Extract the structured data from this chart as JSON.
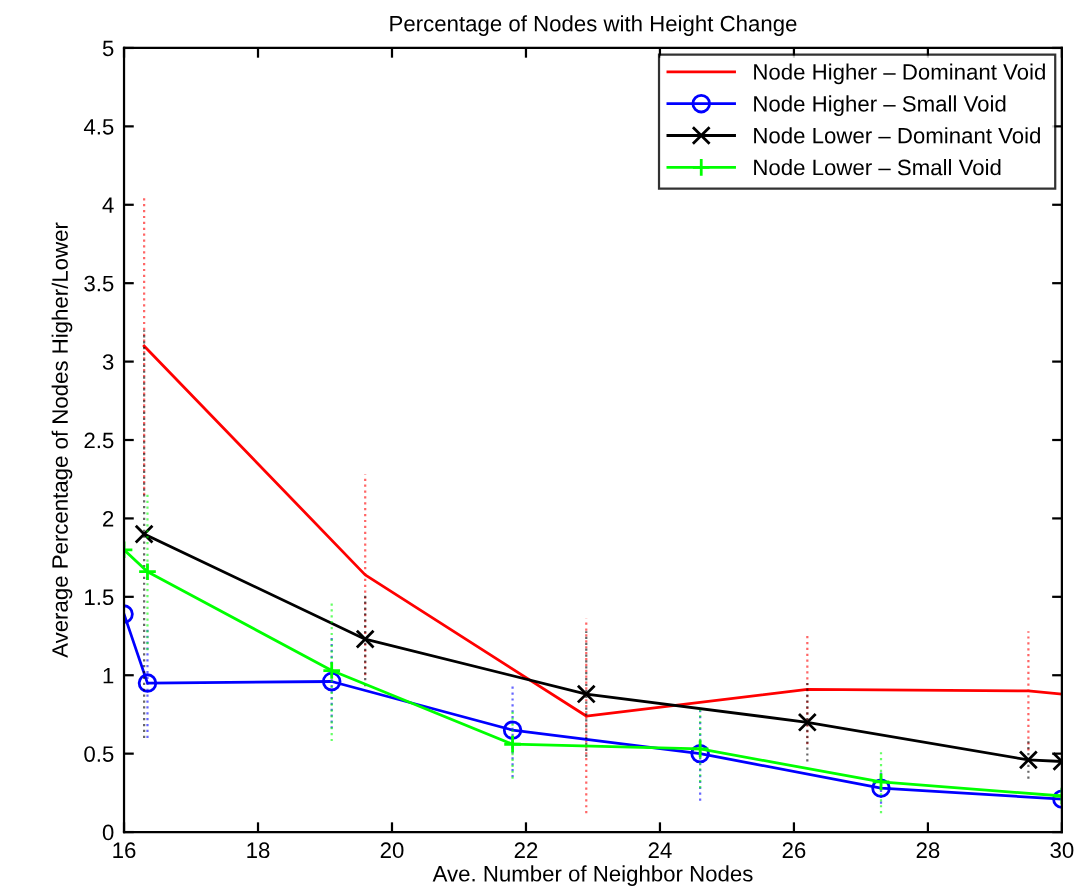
{
  "chart_data": {
    "type": "line",
    "title": "Percentage of Nodes with Height Change",
    "xlabel": "Ave. Number of Neighbor Nodes",
    "ylabel": "Average Percentage of Nodes Higher/Lower",
    "xlim": [
      16,
      30
    ],
    "ylim": [
      0,
      5
    ],
    "xticks": [
      16,
      18,
      20,
      22,
      24,
      26,
      28,
      30
    ],
    "yticks": [
      0,
      0.5,
      1,
      1.5,
      2,
      2.5,
      3,
      3.5,
      4,
      4.5,
      5
    ],
    "grid": false,
    "legend": "top right",
    "line_style": "solid",
    "series": [
      {
        "name": "Node Higher – Dominant Void",
        "color": "#ff0000",
        "marker": "none",
        "x": [
          16.3,
          19.6,
          22.9,
          26.2,
          29.5,
          30
        ],
        "values": [
          3.1,
          1.64,
          0.74,
          0.91,
          0.9,
          0.88
        ],
        "errors": [
          0.95,
          0.64,
          0.62,
          0.35,
          0.38,
          null
        ]
      },
      {
        "name": "Node Higher – Small Void",
        "color": "#0000ff",
        "marker": "circle",
        "x": [
          16,
          16.35,
          19.1,
          21.8,
          24.6,
          27.3,
          30
        ],
        "values": [
          1.39,
          0.95,
          0.96,
          0.65,
          0.5,
          0.28,
          0.21
        ],
        "errors": [
          null,
          0.35,
          0.3,
          0.3,
          0.3,
          0.1,
          null
        ]
      },
      {
        "name": "Node Lower – Dominant Void",
        "color": "#000000",
        "marker": "cross",
        "x": [
          16.3,
          19.6,
          22.9,
          26.2,
          29.5,
          30
        ],
        "values": [
          1.9,
          1.23,
          0.88,
          0.7,
          0.46,
          0.45
        ],
        "errors": [
          1.3,
          0.3,
          0.4,
          0.25,
          0.12,
          null
        ]
      },
      {
        "name": "Node Lower – Small Void",
        "color": "#00ff00",
        "marker": "plus",
        "x": [
          16,
          16.35,
          19.1,
          21.8,
          24.6,
          27.3,
          30
        ],
        "values": [
          1.8,
          1.66,
          1.03,
          0.56,
          0.53,
          0.32,
          0.23
        ],
        "errors": [
          null,
          0.5,
          0.45,
          0.22,
          0.25,
          0.2,
          null
        ]
      }
    ]
  }
}
